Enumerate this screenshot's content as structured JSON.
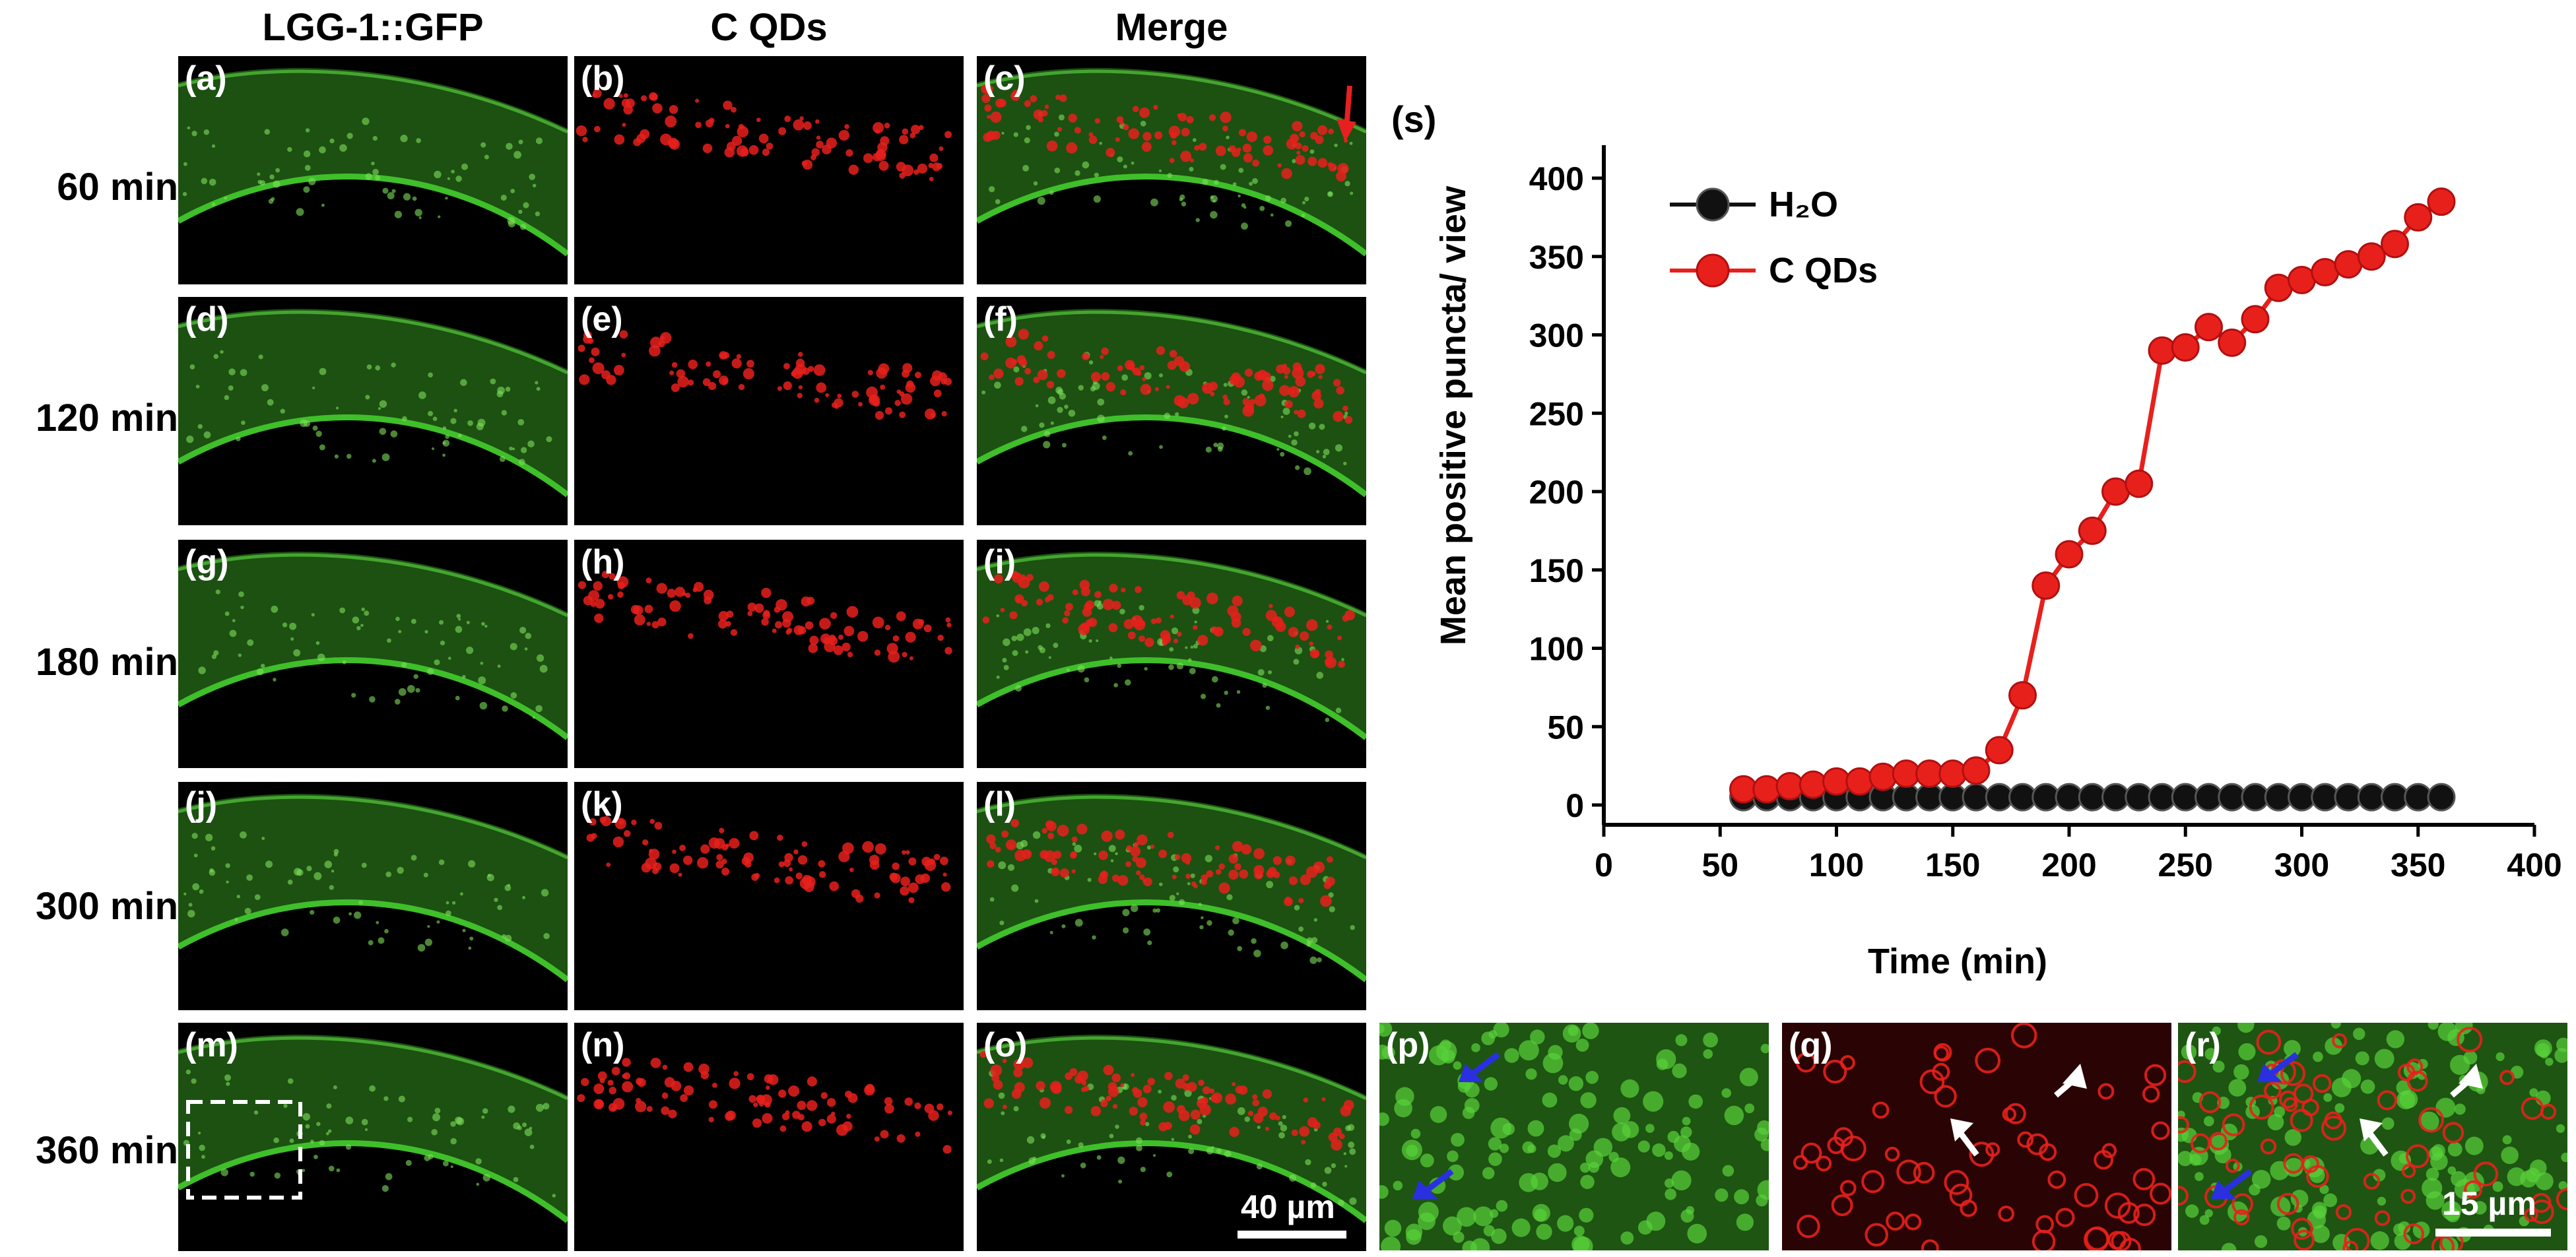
{
  "columns": [
    "LGG-1::GFP",
    "C QDs",
    "Merge"
  ],
  "rows": [
    {
      "label": "60 min",
      "panels": [
        "(a)",
        "(b)",
        "(c)"
      ]
    },
    {
      "label": "120 min",
      "panels": [
        "(d)",
        "(e)",
        "(f)"
      ]
    },
    {
      "label": "180 min",
      "panels": [
        "(g)",
        "(h)",
        "(i)"
      ]
    },
    {
      "label": "300 min",
      "panels": [
        "(j)",
        "(k)",
        "(l)"
      ]
    },
    {
      "label": "360 min",
      "panels": [
        "(m)",
        "(n)",
        "(o)"
      ]
    }
  ],
  "zoom_panels": [
    "(p)",
    "(q)",
    "(r)"
  ],
  "scale_bars": {
    "main": "40 µm",
    "zoom": "15 µm"
  },
  "colors": {
    "gfp": "#3fbf2a",
    "qd": "#e8201c",
    "h2o": "#111111",
    "arrow_red": "#e62020",
    "arrow_blue": "#2a30e0",
    "arrow_white": "#ffffff"
  },
  "chart_data": {
    "type": "line",
    "panel_label": "(s)",
    "xlabel": "Time (min)",
    "ylabel": "Mean positive puncta/ view",
    "xlim": [
      0,
      400
    ],
    "ylim": [
      0,
      400
    ],
    "xticks": [
      0,
      50,
      100,
      150,
      200,
      250,
      300,
      350,
      400
    ],
    "yticks": [
      0,
      50,
      100,
      150,
      200,
      250,
      300,
      350,
      400
    ],
    "legend_position": "top-left",
    "x": [
      60,
      70,
      80,
      90,
      100,
      110,
      120,
      130,
      140,
      150,
      160,
      170,
      180,
      190,
      200,
      210,
      220,
      230,
      240,
      250,
      260,
      270,
      280,
      290,
      300,
      310,
      320,
      330,
      340,
      350,
      360
    ],
    "series": [
      {
        "name": "H₂O",
        "color": "#111111",
        "values": [
          5,
          5,
          5,
          5,
          5,
          5,
          5,
          5,
          5,
          5,
          5,
          5,
          5,
          5,
          5,
          5,
          5,
          5,
          5,
          5,
          5,
          5,
          5,
          5,
          5,
          5,
          5,
          5,
          5,
          5,
          5
        ]
      },
      {
        "name": "C QDs",
        "color": "#e8201c",
        "values": [
          10,
          10,
          12,
          13,
          15,
          15,
          18,
          20,
          20,
          20,
          22,
          35,
          70,
          140,
          160,
          175,
          200,
          205,
          290,
          292,
          305,
          295,
          310,
          330,
          335,
          340,
          345,
          350,
          358,
          375,
          385
        ]
      }
    ]
  }
}
